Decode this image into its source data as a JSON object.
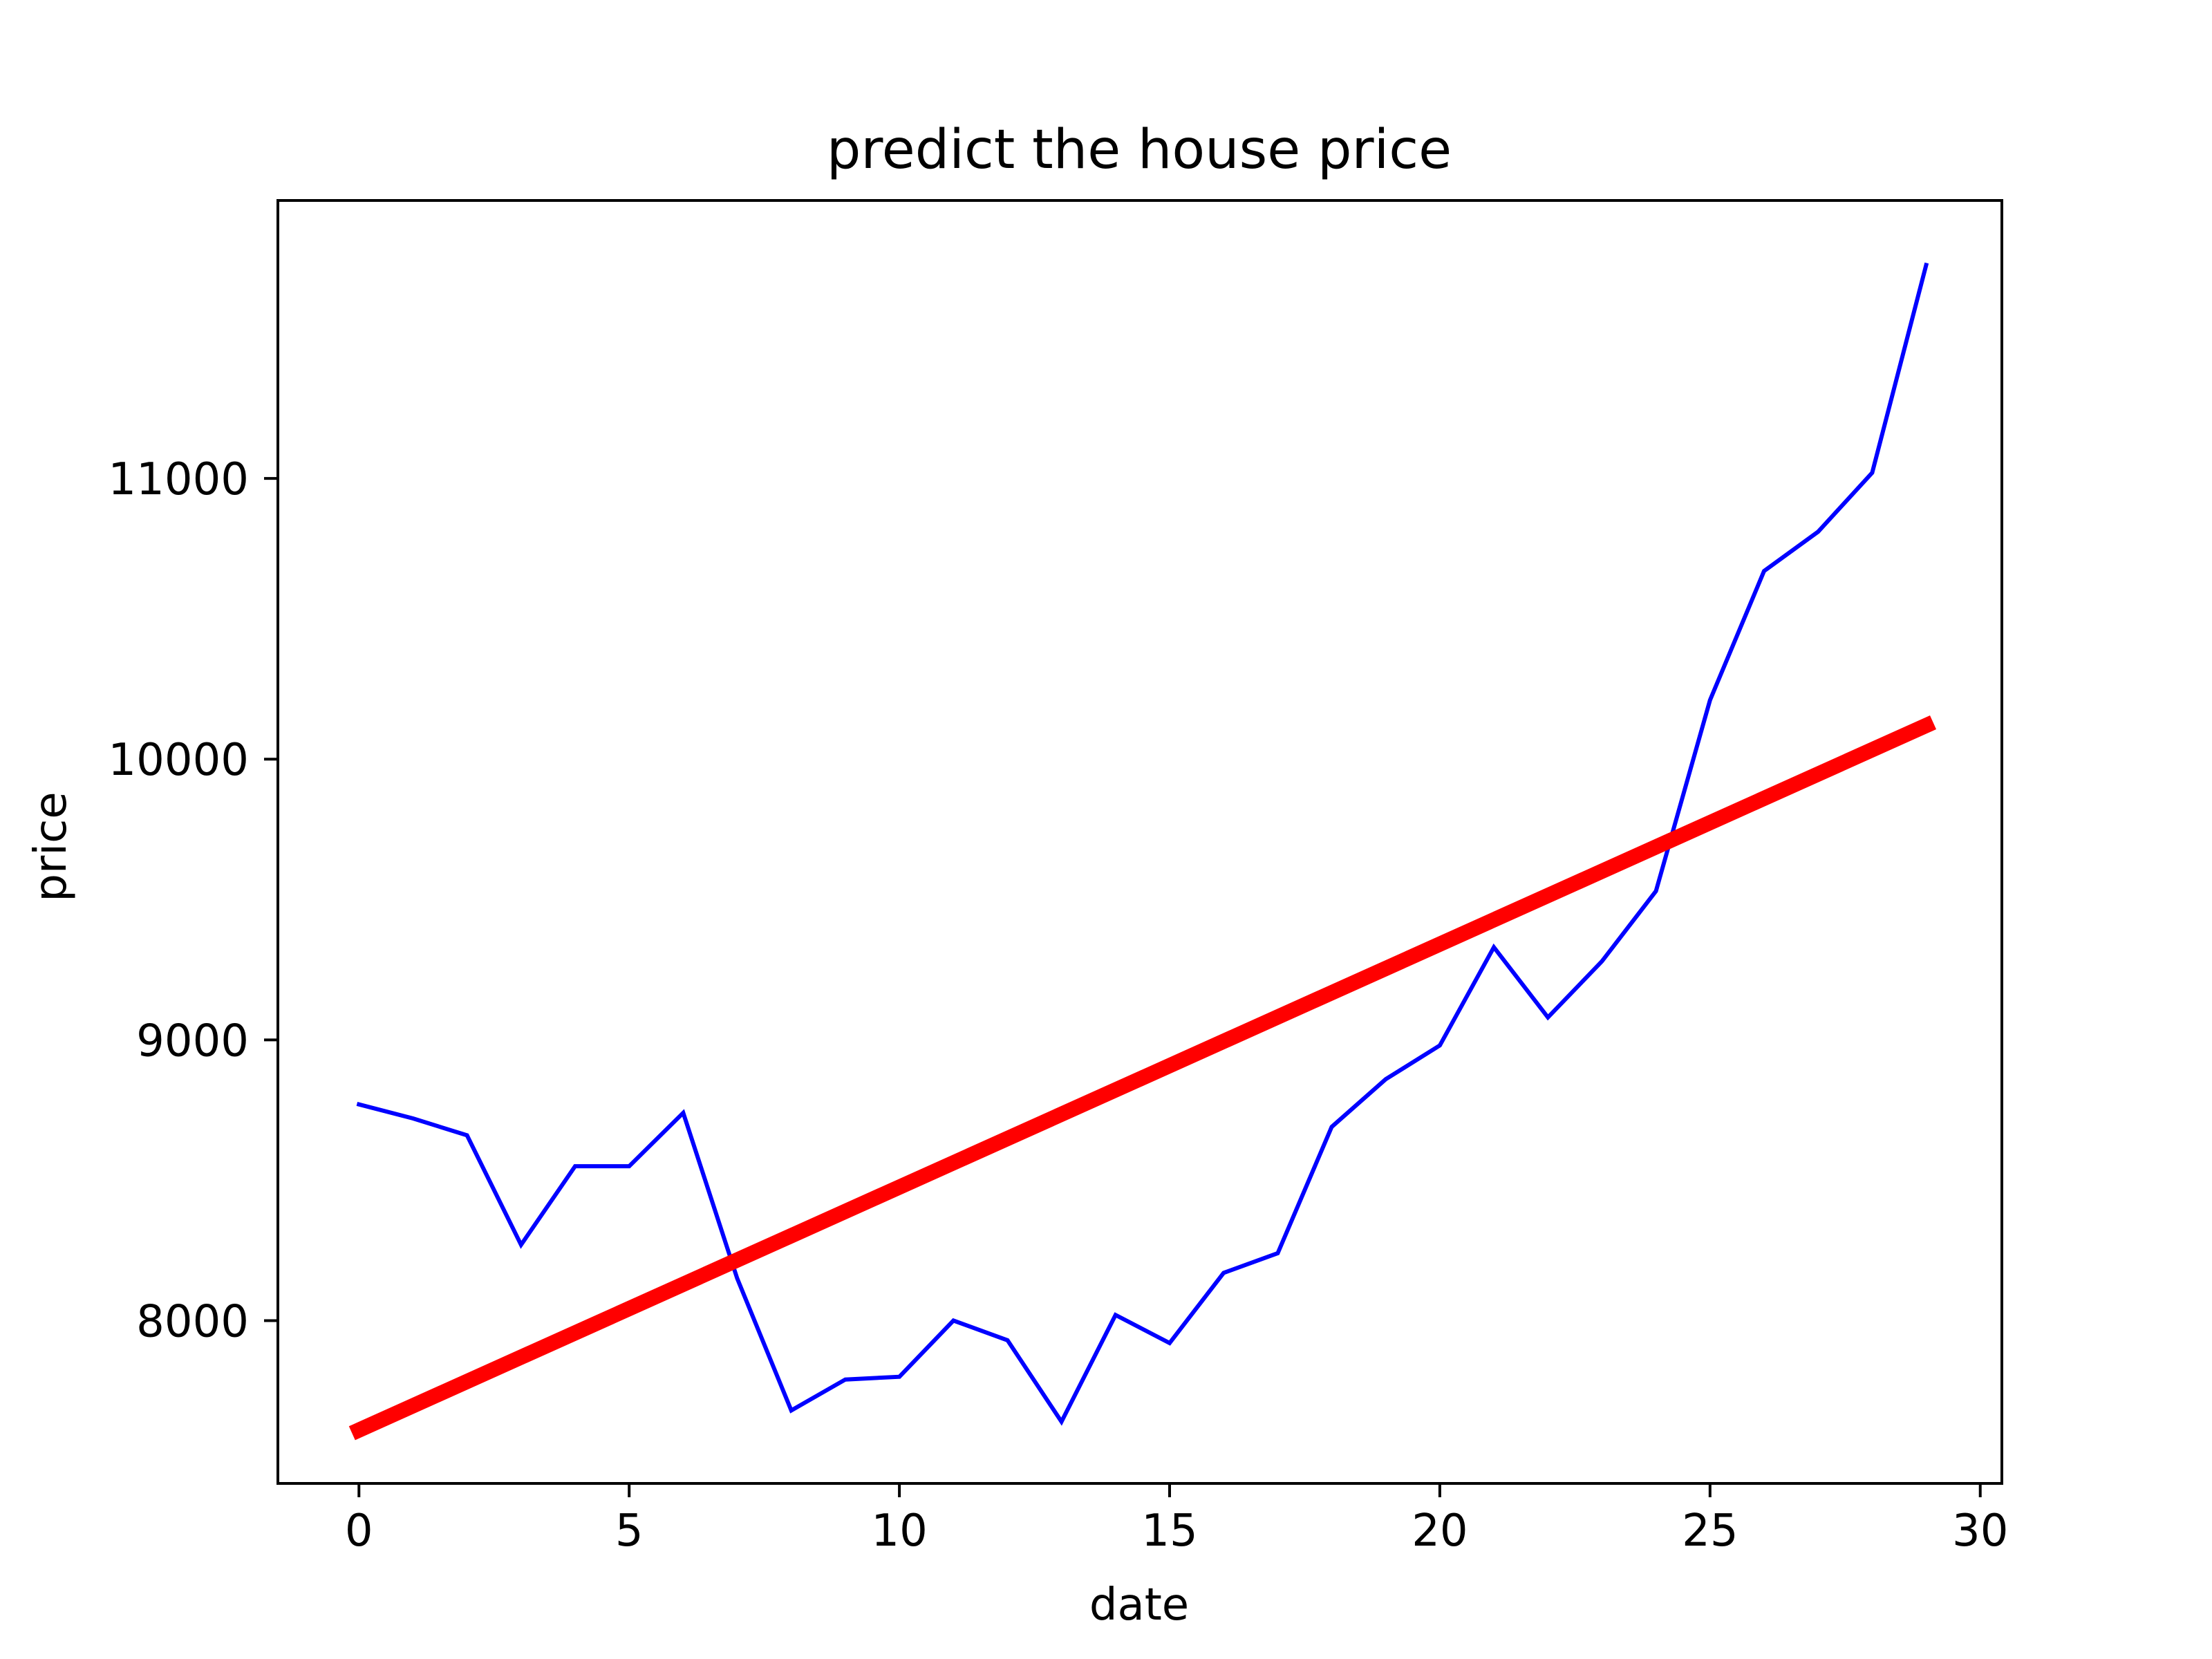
{
  "chart_data": {
    "type": "line",
    "title": "predict the house price",
    "xlabel": "date",
    "ylabel": "price",
    "xlim": [
      -1.5,
      30.4
    ],
    "ylim": [
      7420,
      11990
    ],
    "xticks": [
      0,
      5,
      10,
      15,
      20,
      25,
      30
    ],
    "yticks": [
      8000,
      9000,
      10000,
      11000
    ],
    "xtick_labels": [
      "0",
      "5",
      "10",
      "15",
      "20",
      "25",
      "30"
    ],
    "ytick_labels": [
      "8000",
      "9000",
      "10000",
      "11000"
    ],
    "grid": false,
    "legend": "none",
    "series": [
      {
        "color": "#0000ff",
        "x": [
          0,
          1,
          2,
          3,
          4,
          5,
          6,
          7,
          8,
          9,
          10,
          11,
          12,
          13,
          14,
          15,
          16,
          17,
          18,
          19,
          20,
          21,
          22,
          23,
          24,
          25,
          26,
          27,
          28,
          29
        ],
        "values": [
          8770,
          8720,
          8660,
          8270,
          8550,
          8550,
          8740,
          8150,
          7680,
          7790,
          7800,
          8000,
          7930,
          7640,
          8020,
          7920,
          8170,
          8240,
          8690,
          8860,
          8980,
          9330,
          9080,
          9280,
          9530,
          10210,
          10670,
          10810,
          11020,
          11760
        ]
      },
      {
        "color": "#ff0000",
        "x": [
          0,
          29
        ],
        "values": [
          7610,
          10120
        ]
      }
    ]
  }
}
